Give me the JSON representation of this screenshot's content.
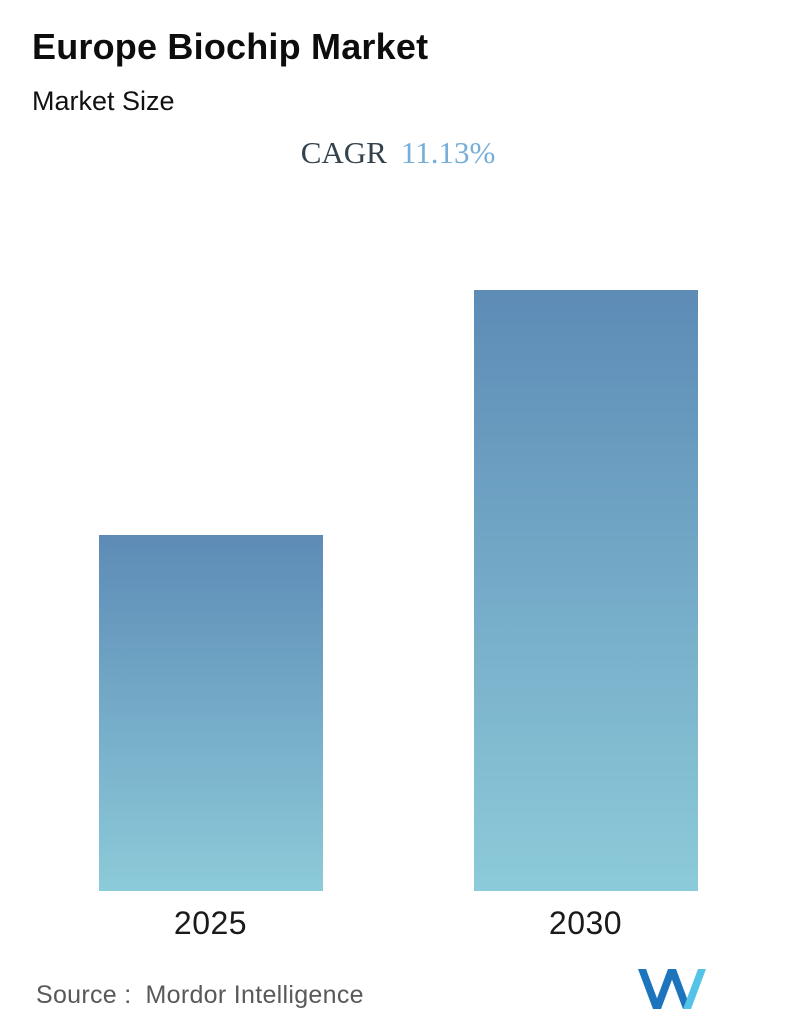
{
  "header": {
    "title": "Europe Biochip Market",
    "subtitle": "Market Size"
  },
  "cagr": {
    "label": "CAGR",
    "value": "11.13%"
  },
  "chart_data": {
    "type": "bar",
    "title": "Europe Biochip Market",
    "subtitle": "Market Size",
    "categories": [
      "2025",
      "2030"
    ],
    "series": [
      {
        "name": "Market Size (relative, no value labels shown)",
        "values": [
          1.0,
          1.69
        ]
      }
    ],
    "annotations": [
      "CAGR 11.13%"
    ],
    "xlabel": "",
    "ylabel": "",
    "value_axis_shown": false,
    "gridlines": false,
    "legend_position": "none",
    "bar_gradient_top": "#5d8bb6",
    "bar_gradient_bottom": "#8ccbd9"
  },
  "footer": {
    "source_label": "Source :",
    "source_value": "Mordor Intelligence",
    "logo_name": "mordor-intelligence-logo"
  },
  "colors": {
    "cagr_value_blue": "#74aed9",
    "cagr_label_dark": "#33424c",
    "bar_top": "#5d8bb6",
    "bar_bottom": "#8ccbd9",
    "logo_dark_blue": "#1c75bc",
    "logo_light_blue": "#55c3e8",
    "source_gray": "#58595b",
    "title_black": "#0d0d0d"
  }
}
